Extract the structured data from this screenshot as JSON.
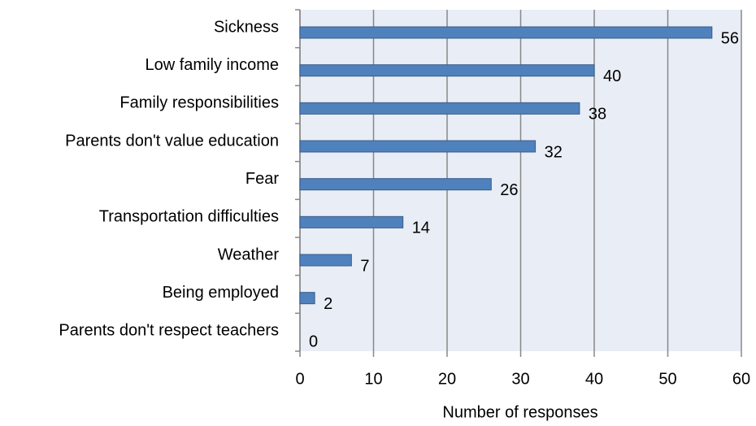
{
  "chart_data": {
    "type": "hbar",
    "categories": [
      "Sickness",
      "Low family income",
      "Family responsibilities",
      "Parents don't value education",
      "Fear",
      "Transportation difficulties",
      "Weather",
      "Being employed",
      "Parents don't respect teachers"
    ],
    "values": [
      56,
      40,
      38,
      32,
      26,
      14,
      7,
      2,
      0
    ],
    "color": "#4f81bd",
    "xlabel": "Number of responses",
    "xlim": [
      0,
      60
    ],
    "xticks": [
      0,
      10,
      20,
      30,
      40,
      50,
      60
    ],
    "grid": true
  }
}
